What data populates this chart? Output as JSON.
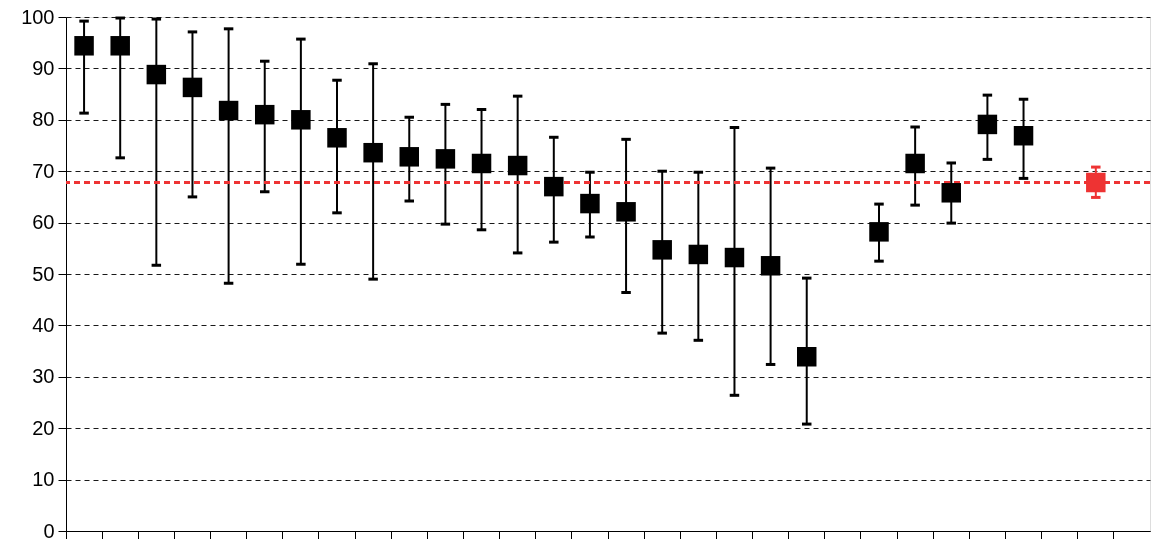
{
  "chart_data": {
    "type": "scatter",
    "categories": [
      null,
      null,
      null,
      null,
      null,
      null,
      null,
      null,
      null,
      null,
      null,
      null,
      null,
      null,
      null,
      null,
      null,
      null,
      null,
      null,
      null,
      null,
      null,
      null,
      null,
      null,
      null,
      null,
      null,
      null
    ],
    "series": [
      {
        "color": "#000000",
        "values": [
          94.4,
          94.4,
          88.8,
          86.3,
          81.8,
          81.0,
          80.0,
          76.5,
          73.6,
          72.8,
          72.4,
          71.5,
          71.1,
          67.0,
          63.7,
          62.1,
          54.7,
          53.8,
          53.2,
          51.6,
          33.9,
          null,
          58.2,
          71.5,
          65.8,
          79.1,
          76.9,
          null,
          null,
          null
        ],
        "errors": [
          [
            81.3,
            99.2
          ],
          [
            72.6,
            99.8
          ],
          [
            51.7,
            99.6
          ],
          [
            65.0,
            97.1
          ],
          [
            48.2,
            97.7
          ],
          [
            66.0,
            91.4
          ],
          [
            51.9,
            95.7
          ],
          [
            61.9,
            87.7
          ],
          [
            49.0,
            90.9
          ],
          [
            64.2,
            80.5
          ],
          [
            59.7,
            83.0
          ],
          [
            58.6,
            82.0
          ],
          [
            54.1,
            84.6
          ],
          [
            56.2,
            76.6
          ],
          [
            57.2,
            69.8
          ],
          [
            46.4,
            76.2
          ],
          [
            38.5,
            70.0
          ],
          [
            37.1,
            69.8
          ],
          [
            26.4,
            78.5
          ],
          [
            32.4,
            70.6
          ],
          [
            20.8,
            49.2
          ],
          null,
          [
            52.5,
            63.6
          ],
          [
            63.4,
            78.6
          ],
          [
            59.9,
            71.6
          ],
          [
            72.3,
            84.8
          ],
          [
            68.6,
            84.0
          ],
          null,
          null,
          null
        ]
      },
      {
        "color": "#ee3333",
        "values": [
          null,
          null,
          null,
          null,
          null,
          null,
          null,
          null,
          null,
          null,
          null,
          null,
          null,
          null,
          null,
          null,
          null,
          null,
          null,
          null,
          null,
          null,
          null,
          null,
          null,
          null,
          null,
          null,
          67.8,
          null
        ],
        "errors": [
          null,
          null,
          null,
          null,
          null,
          null,
          null,
          null,
          null,
          null,
          null,
          null,
          null,
          null,
          null,
          null,
          null,
          null,
          null,
          null,
          null,
          null,
          null,
          null,
          null,
          null,
          null,
          null,
          [
            64.9,
            70.8
          ],
          null
        ]
      }
    ],
    "ylim": [
      0,
      100
    ],
    "yticks": [
      0,
      10,
      20,
      30,
      40,
      50,
      60,
      70,
      80,
      90,
      100
    ],
    "ref_lines": [
      {
        "axis": "y",
        "value": 67.8,
        "color": "#ee3333",
        "line_style": "dashed"
      }
    ],
    "grid": "y",
    "marker": "square",
    "tick_labels": "y"
  }
}
